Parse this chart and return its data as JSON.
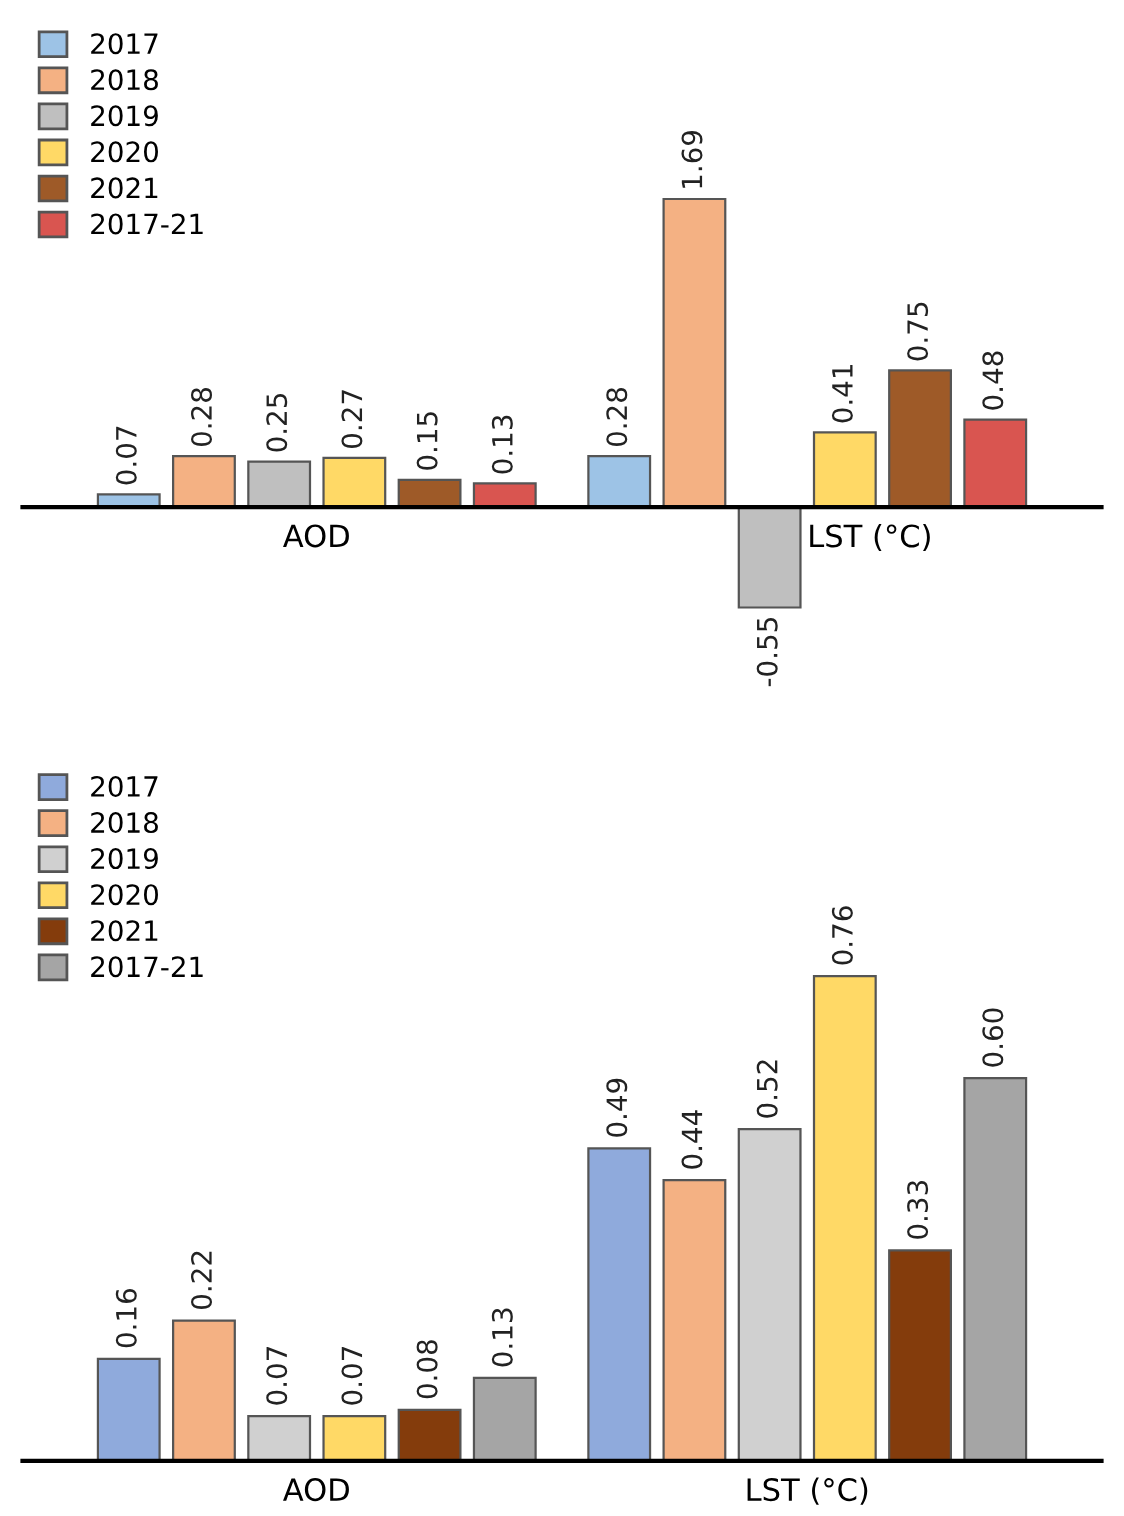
{
  "chart_data": [
    {
      "type": "bar",
      "categories": [
        "AOD",
        "LST (°C)"
      ],
      "legend": "top left",
      "grid": false,
      "series": [
        {
          "name": "2017",
          "color": "#9dc3e6",
          "values": [
            0.07,
            0.28
          ],
          "value_labels": [
            "0.07",
            "0.28"
          ]
        },
        {
          "name": "2018",
          "color": "#f4b183",
          "values": [
            0.28,
            1.69
          ],
          "value_labels": [
            "0.28",
            "1.69"
          ]
        },
        {
          "name": "2019",
          "color": "#bfbfbf",
          "values": [
            0.25,
            -0.55
          ],
          "value_labels": [
            "0.25",
            "-0.55"
          ]
        },
        {
          "name": "2020",
          "color": "#ffd966",
          "values": [
            0.27,
            0.41
          ],
          "value_labels": [
            "0.27",
            "0.41"
          ]
        },
        {
          "name": "2021",
          "color": "#9e5a28",
          "values": [
            0.15,
            0.75
          ],
          "value_labels": [
            "0.15",
            "0.75"
          ]
        },
        {
          "name": "2017-21",
          "color": "#d95550",
          "values": [
            0.13,
            0.48
          ],
          "value_labels": [
            "0.13",
            "0.48"
          ]
        }
      ]
    },
    {
      "type": "bar",
      "categories": [
        "AOD",
        "LST (°C)"
      ],
      "legend": "top left",
      "grid": false,
      "series": [
        {
          "name": "2017",
          "color": "#8faadc",
          "values": [
            0.16,
            0.49
          ],
          "value_labels": [
            "0.16",
            "0.49"
          ]
        },
        {
          "name": "2018",
          "color": "#f4b183",
          "values": [
            0.22,
            0.44
          ],
          "value_labels": [
            "0.22",
            "0.44"
          ]
        },
        {
          "name": "2019",
          "color": "#d0d0d0",
          "values": [
            0.07,
            0.52
          ],
          "value_labels": [
            "0.07",
            "0.52"
          ]
        },
        {
          "name": "2020",
          "color": "#ffd966",
          "values": [
            0.07,
            0.76
          ],
          "value_labels": [
            "0.07",
            "0.76"
          ]
        },
        {
          "name": "2021",
          "color": "#843c0c",
          "values": [
            0.08,
            0.33
          ],
          "value_labels": [
            "0.08",
            "0.33"
          ]
        },
        {
          "name": "2017-21",
          "color": "#a5a5a5",
          "values": [
            0.13,
            0.6
          ],
          "value_labels": [
            "0.13",
            "0.60"
          ]
        }
      ]
    }
  ]
}
